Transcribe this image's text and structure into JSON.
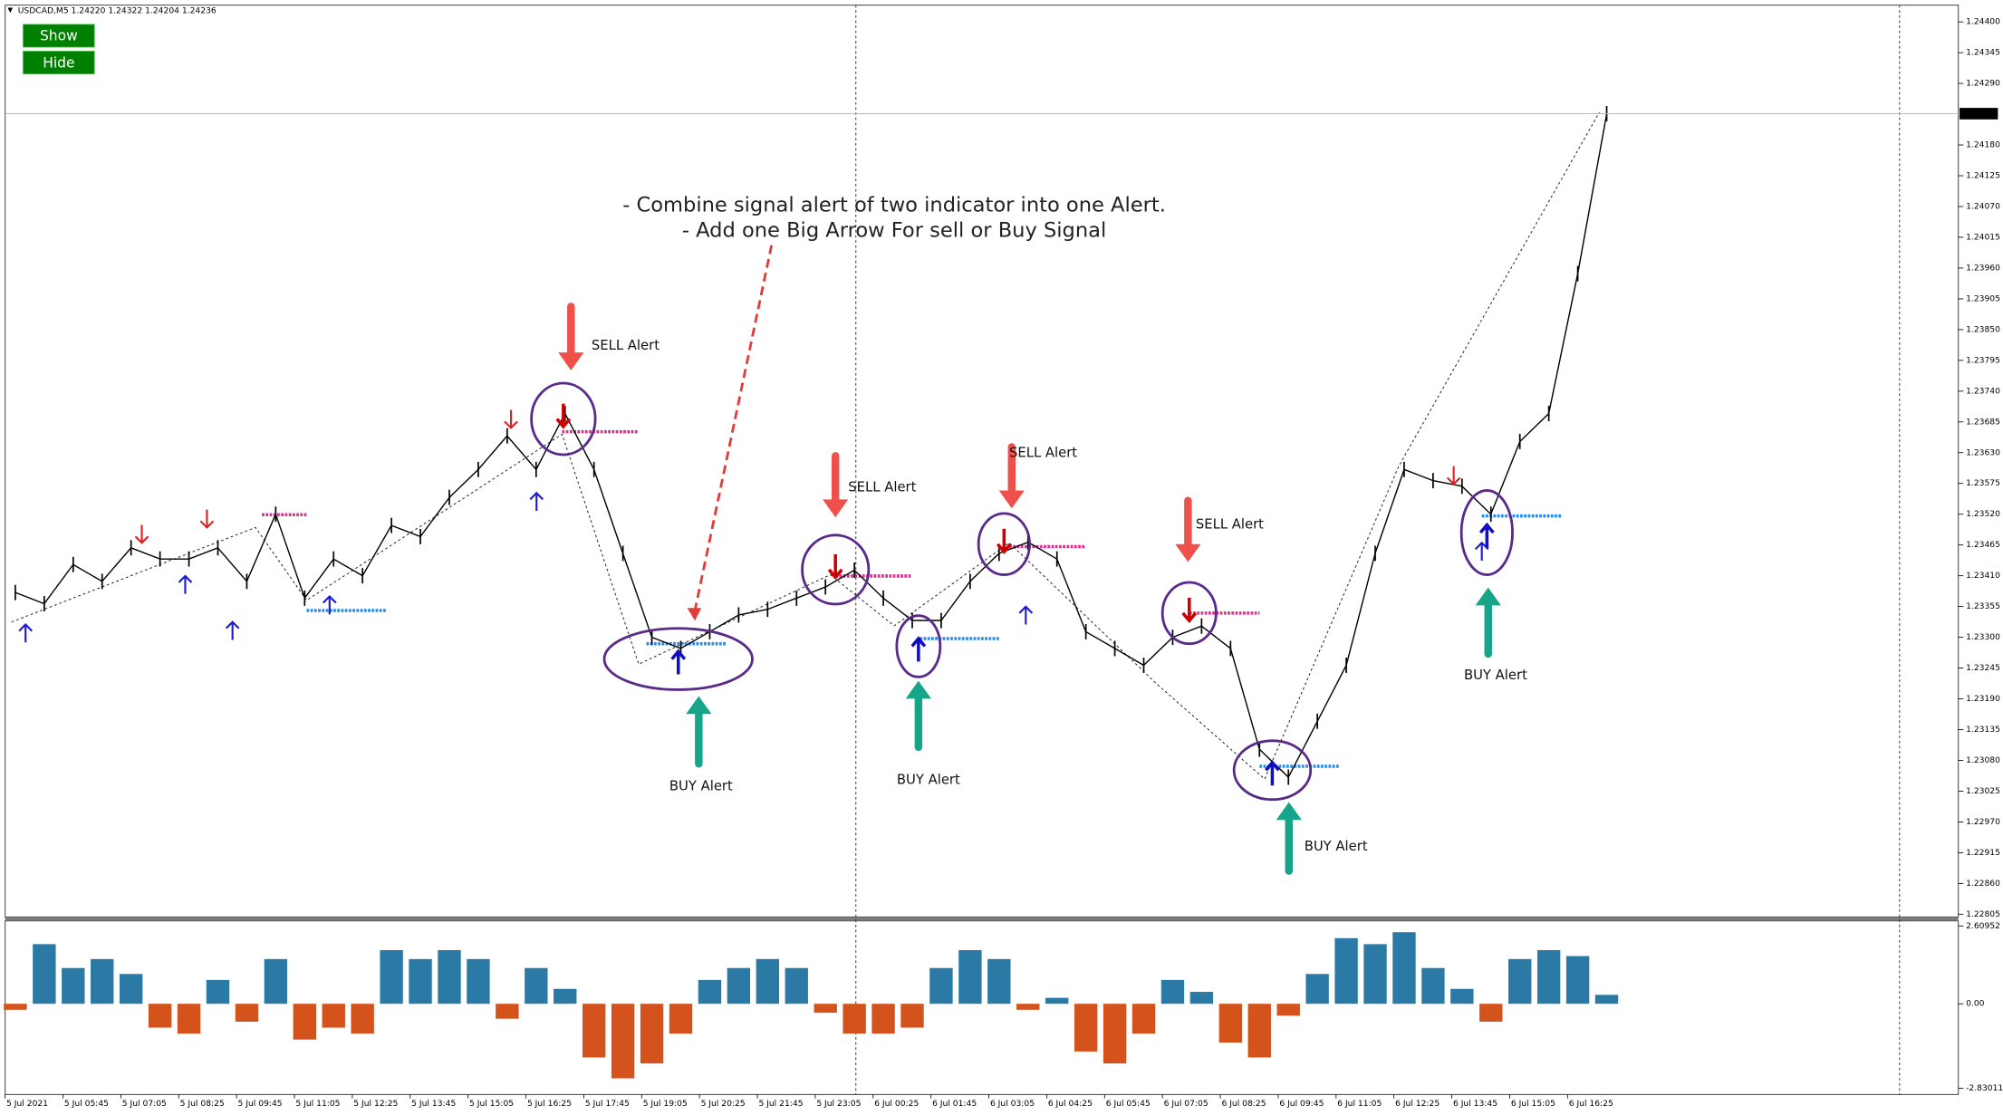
{
  "header": "USDCAD,M5  1.24220 1.24322 1.24204 1.24236",
  "buttons": [
    "Show",
    "Hide"
  ],
  "annotations": [
    "- Combine signal alert of two indicator into one Alert.",
    "- Add one Big Arrow For sell or Buy Signal"
  ],
  "alerts": [
    "SELL Alert",
    "SELL Alert",
    "SELL Alert",
    "SELL Alert",
    "BUY Alert",
    "BUY Alert",
    "BUY Alert",
    "BUY Alert"
  ],
  "chart_data": [
    {
      "type": "line",
      "color": "#000000",
      "categories": [
        "5 Jul 2021",
        null,
        "5 Jul 05:45",
        null,
        "5 Jul 07:05",
        null,
        "5 Jul 08:25",
        null,
        "5 Jul 09:45",
        null,
        "5 Jul 11:05",
        null,
        "5 Jul 12:25",
        null,
        "5 Jul 13:45",
        null,
        "5 Jul 15:05",
        null,
        "5 Jul 16:25",
        null,
        "5 Jul 17:45",
        null,
        "5 Jul 19:05",
        null,
        "5 Jul 20:25",
        null,
        "5 Jul 21:45",
        null,
        "5 Jul 23:05",
        null,
        "6 Jul 00:25",
        null,
        "6 Jul 01:45",
        null,
        "6 Jul 03:05",
        null,
        "6 Jul 04:25",
        null,
        "6 Jul 05:45",
        null,
        "6 Jul 07:05",
        null,
        "6 Jul 08:25",
        null,
        "6 Jul 09:45",
        null,
        "6 Jul 11:05",
        null,
        "6 Jul 12:25",
        null,
        "6 Jul 13:45",
        null,
        "6 Jul 15:05",
        null,
        "6 Jul 16:25",
        null
      ],
      "values": [
        1.2338,
        1.2336,
        1.2343,
        1.234,
        1.2346,
        1.2344,
        1.2344,
        1.2346,
        1.234,
        1.2352,
        1.2337,
        1.2344,
        1.2341,
        1.235,
        1.2348,
        1.2355,
        1.236,
        1.2366,
        1.236,
        1.237,
        1.236,
        1.2345,
        1.233,
        1.2328,
        1.2331,
        1.2334,
        1.2335,
        1.2337,
        1.2339,
        1.2342,
        1.2337,
        1.2333,
        1.2333,
        1.234,
        1.2345,
        1.2347,
        1.2344,
        1.2331,
        1.2328,
        1.2325,
        1.233,
        1.2332,
        1.2328,
        1.231,
        1.2305,
        1.2315,
        1.2325,
        1.2345,
        1.236,
        1.2358,
        1.2357,
        1.2352,
        1.2365,
        1.237,
        1.2395,
        1.24236
      ],
      "ylim": [
        1.228,
        1.2443
      ],
      "yticks": [
        {
          "value": 1.244,
          "label": "1.24400"
        },
        1.24345,
        {
          "value": 1.2429,
          "label": "1.24290"
        },
        {
          "value": 1.2418,
          "label": "1.24180"
        },
        1.24125,
        {
          "value": 1.2407,
          "label": "1.24070"
        },
        1.24015,
        {
          "value": 1.2396,
          "label": "1.23960"
        },
        1.23905,
        {
          "value": 1.2385,
          "label": "1.23850"
        },
        1.23795,
        {
          "value": 1.2374,
          "label": "1.23740"
        },
        1.23685,
        {
          "value": 1.2363,
          "label": "1.23630"
        },
        1.23575,
        {
          "value": 1.2352,
          "label": "1.23520"
        },
        1.23465,
        {
          "value": 1.2341,
          "label": "1.23410"
        },
        1.23355,
        {
          "value": 1.233,
          "label": "1.23300"
        },
        1.23245,
        {
          "value": 1.2319,
          "label": "1.23190"
        },
        1.23135,
        {
          "value": 1.2308,
          "label": "1.23080"
        },
        1.23025,
        {
          "value": 1.2297,
          "label": "1.22970"
        },
        1.22915,
        {
          "value": 1.2286,
          "label": "1.22860"
        },
        1.22805
      ],
      "current_price": 1.24236
    },
    {
      "type": "bar",
      "color": "#2b7aa5",
      "negative_color": "#d4521c",
      "values": [
        -0.2,
        2.0,
        1.2,
        1.5,
        1.0,
        -0.8,
        -1.0,
        0.8,
        -0.6,
        1.5,
        -1.2,
        -0.8,
        -1.0,
        1.8,
        1.5,
        1.8,
        1.5,
        -0.5,
        1.2,
        0.5,
        -1.8,
        -2.5,
        -2.0,
        -1.0,
        0.8,
        1.2,
        1.5,
        1.2,
        -0.3,
        -1.0,
        -1.0,
        -0.8,
        1.2,
        1.8,
        1.5,
        -0.2,
        0.2,
        -1.6,
        -2.0,
        -1.0,
        0.8,
        0.4,
        -1.3,
        -1.8,
        -0.4,
        1.0,
        2.2,
        2.0,
        2.4,
        1.2,
        0.5,
        -0.6,
        1.5,
        1.8,
        1.6,
        0.3
      ],
      "ylim": [
        -2.83011,
        2.60952
      ],
      "yticks": [
        2.60952,
        {
          "value": 0,
          "label": "0.00"
        },
        -2.83011
      ]
    }
  ]
}
